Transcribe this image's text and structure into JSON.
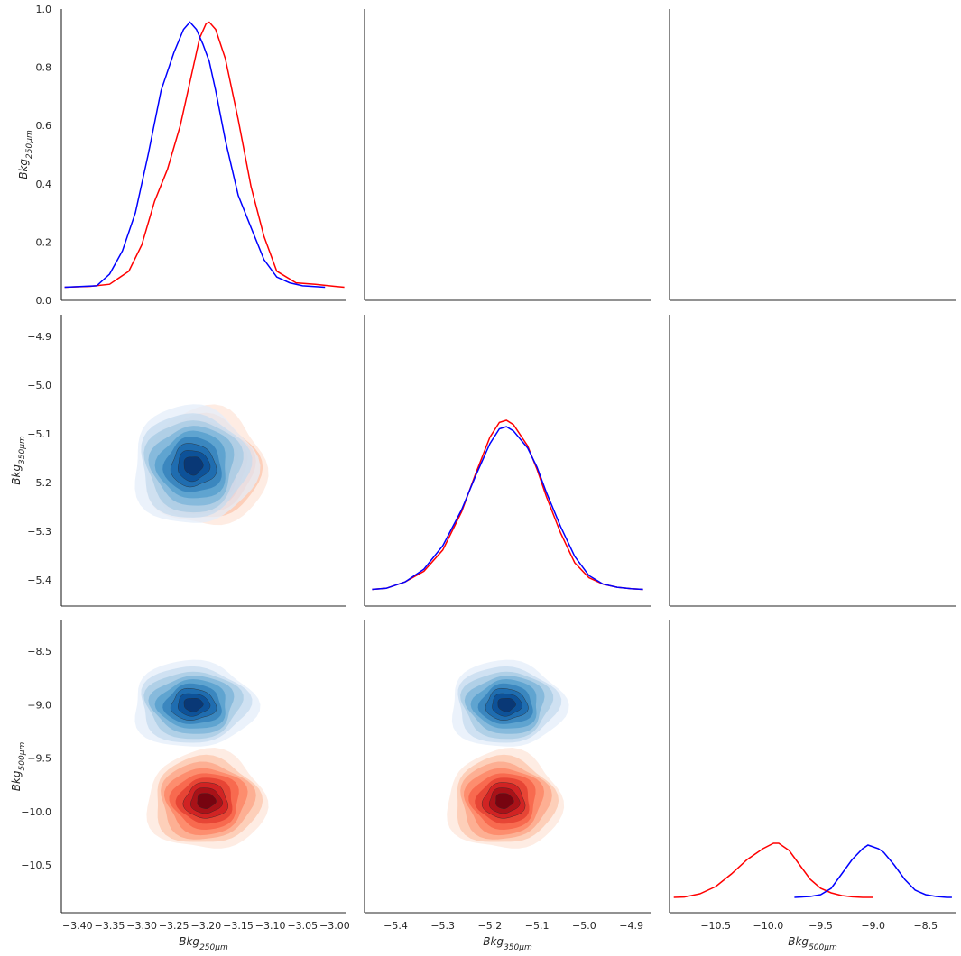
{
  "chart_data": {
    "type": "pairplot",
    "variables": [
      {
        "name": "Bkg",
        "sub": "250μm",
        "ticks": [
          -3.4,
          -3.35,
          -3.3,
          -3.25,
          -3.2,
          -3.15,
          -3.1,
          -3.05,
          -3.0
        ],
        "tick_labels": [
          "−3.40",
          "−3.35",
          "−3.30",
          "−3.25",
          "−3.20",
          "−3.15",
          "−3.10",
          "−3.05",
          "−3.00"
        ],
        "lim": [
          -3.425,
          -2.983
        ]
      },
      {
        "name": "Bkg",
        "sub": "350μm",
        "ticks": [
          -5.4,
          -5.3,
          -5.2,
          -5.1,
          -5.0,
          -4.9
        ],
        "tick_labels": [
          "−5.4",
          "−5.3",
          "−5.2",
          "−5.1",
          "−5.0",
          "−4.9"
        ],
        "lim": [
          -5.466,
          -4.859
        ]
      },
      {
        "name": "Bkg",
        "sub": "500μm",
        "ticks": [
          -11.0,
          -10.5,
          -10.0,
          -9.5,
          -9.0,
          -8.5
        ],
        "tick_labels": [
          "−11.0",
          "−10.5",
          "−10.0",
          "−9.5",
          "−9.0",
          "−8.5"
        ],
        "lim": [
          -10.94,
          -8.215
        ]
      }
    ],
    "diag_ylim": [
      0,
      1.0
    ],
    "diag_yticks": [
      0.0,
      0.2,
      0.4,
      0.6,
      0.8,
      1.0
    ],
    "diag_ytick_labels": [
      "0.0",
      "0.2",
      "0.4",
      "0.6",
      "0.8",
      "1.0"
    ],
    "row_yticks": {
      "1": {
        "ticks": [
          -5.4,
          -5.3,
          -5.2,
          -5.1,
          -5.0,
          -4.9
        ],
        "labels": [
          "−5.4",
          "−5.3",
          "−5.2",
          "−5.1",
          "−5.0",
          "−4.9"
        ]
      },
      "2": {
        "ticks": [
          -10.5,
          -10.0,
          -9.5,
          -9.0,
          -8.5
        ],
        "labels": [
          "−10.5",
          "−10.0",
          "−9.5",
          "−9.0",
          "−8.5"
        ]
      }
    },
    "series": [
      {
        "color": "#ff0000",
        "cmap": "reds",
        "means": [
          -3.2,
          -5.17,
          -9.9
        ],
        "sds": [
          0.032,
          0.042,
          0.16
        ],
        "kde": [
          {
            "x": [
              -3.42,
              -3.38,
              -3.35,
              -3.32,
              -3.3,
              -3.28,
              -3.26,
              -3.24,
              -3.22,
              -3.21,
              -3.2,
              -3.195,
              -3.185,
              -3.17,
              -3.15,
              -3.13,
              -3.11,
              -3.09,
              -3.06,
              -3.03,
              -3.0,
              -2.985
            ],
            "y": [
              0.045,
              0.048,
              0.055,
              0.1,
              0.19,
              0.34,
              0.45,
              0.6,
              0.8,
              0.9,
              0.95,
              0.955,
              0.93,
              0.83,
              0.62,
              0.39,
              0.22,
              0.1,
              0.06,
              0.055,
              0.048,
              0.045
            ]
          },
          {
            "x": [
              -5.45,
              -5.42,
              -5.38,
              -5.34,
              -5.3,
              -5.26,
              -5.23,
              -5.2,
              -5.18,
              -5.165,
              -5.15,
              -5.12,
              -5.1,
              -5.08,
              -5.05,
              -5.02,
              -4.99,
              -4.96,
              -4.93,
              -4.9,
              -4.875
            ],
            "y": [
              0.015,
              0.02,
              0.05,
              0.1,
              0.2,
              0.38,
              0.56,
              0.73,
              0.8,
              0.81,
              0.79,
              0.69,
              0.58,
              0.45,
              0.28,
              0.14,
              0.07,
              0.04,
              0.025,
              0.018,
              0.015
            ]
          },
          {
            "x": [
              -10.9,
              -10.8,
              -10.65,
              -10.5,
              -10.35,
              -10.2,
              -10.05,
              -9.95,
              -9.9,
              -9.8,
              -9.7,
              -9.6,
              -9.5,
              -9.4,
              -9.3,
              -9.2,
              -9.1,
              -9.0
            ],
            "y": [
              0.01,
              0.012,
              0.03,
              0.07,
              0.14,
              0.22,
              0.28,
              0.31,
              0.31,
              0.27,
              0.19,
              0.11,
              0.06,
              0.035,
              0.02,
              0.013,
              0.01,
              0.01
            ]
          }
        ]
      },
      {
        "color": "#0000ff",
        "cmap": "blues",
        "means": [
          -3.22,
          -5.165,
          -9.0
        ],
        "sds": [
          0.033,
          0.042,
          0.14
        ],
        "kde": [
          {
            "x": [
              -3.42,
              -3.37,
              -3.35,
              -3.33,
              -3.31,
              -3.29,
              -3.27,
              -3.25,
              -3.235,
              -3.225,
              -3.215,
              -3.205,
              -3.195,
              -3.185,
              -3.17,
              -3.15,
              -3.13,
              -3.11,
              -3.09,
              -3.07,
              -3.05,
              -3.015
            ],
            "y": [
              0.045,
              0.05,
              0.09,
              0.17,
              0.3,
              0.5,
              0.72,
              0.85,
              0.93,
              0.955,
              0.93,
              0.88,
              0.82,
              0.72,
              0.55,
              0.36,
              0.25,
              0.14,
              0.08,
              0.06,
              0.05,
              0.045
            ]
          },
          {
            "x": [
              -5.45,
              -5.42,
              -5.38,
              -5.34,
              -5.3,
              -5.26,
              -5.23,
              -5.2,
              -5.18,
              -5.165,
              -5.15,
              -5.12,
              -5.1,
              -5.08,
              -5.05,
              -5.02,
              -4.99,
              -4.96,
              -4.93,
              -4.9,
              -4.875
            ],
            "y": [
              0.015,
              0.02,
              0.05,
              0.11,
              0.22,
              0.39,
              0.55,
              0.7,
              0.77,
              0.78,
              0.76,
              0.68,
              0.59,
              0.47,
              0.31,
              0.17,
              0.08,
              0.04,
              0.025,
              0.018,
              0.015
            ]
          },
          {
            "x": [
              -9.75,
              -9.6,
              -9.5,
              -9.4,
              -9.3,
              -9.2,
              -9.1,
              -9.05,
              -9.0,
              -8.95,
              -8.9,
              -8.8,
              -8.7,
              -8.6,
              -8.5,
              -8.4,
              -8.3,
              -8.25
            ],
            "y": [
              0.01,
              0.015,
              0.025,
              0.06,
              0.14,
              0.22,
              0.28,
              0.3,
              0.29,
              0.28,
              0.26,
              0.19,
              0.11,
              0.05,
              0.025,
              0.015,
              0.01,
              0.01
            ]
          }
        ]
      }
    ]
  }
}
